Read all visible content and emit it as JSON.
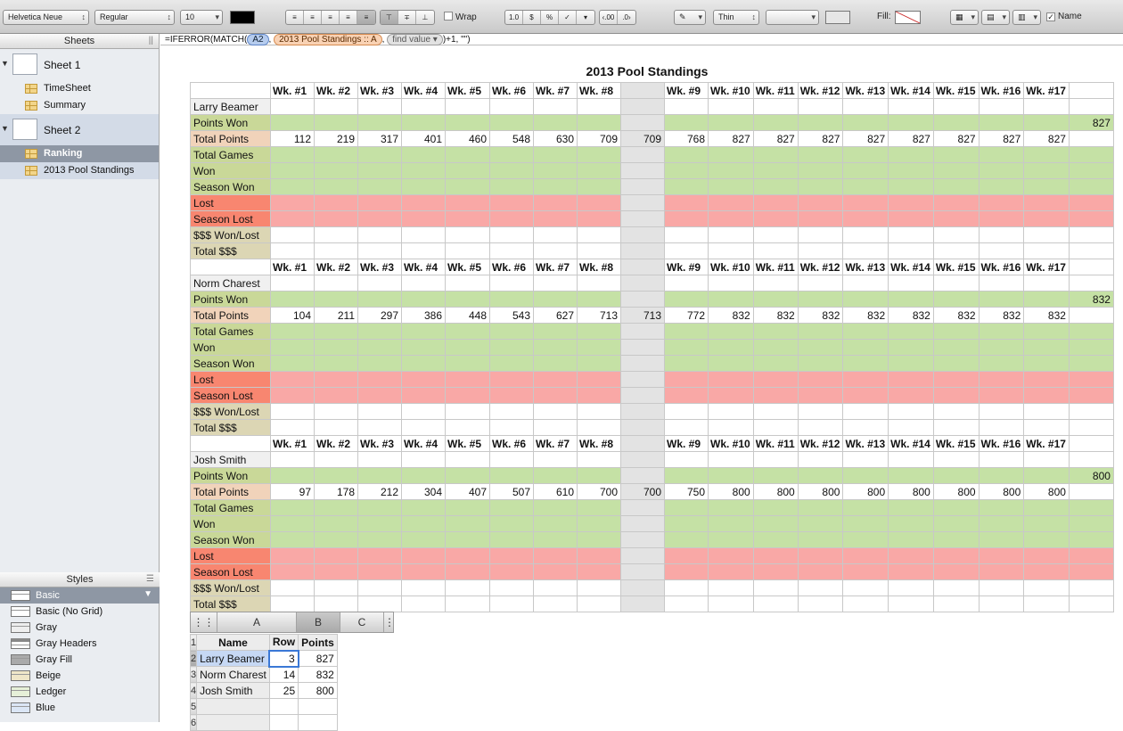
{
  "toolbar": {
    "font_family": "Helvetica Neue",
    "font_style": "Regular",
    "font_size": "10",
    "text_color": "#000000",
    "wrap_label": "Wrap",
    "format_buttons": [
      "1.0",
      "$",
      "%",
      "✓",
      "▾",
      "‹.00",
      ".0›"
    ],
    "stroke_label": "Thin",
    "fill_label": "Fill:",
    "name_label": "Name"
  },
  "sidebar": {
    "sheets_title": "Sheets",
    "sheets": [
      {
        "name": "Sheet 1",
        "tables": [
          "TimeSheet",
          "Summary"
        ]
      },
      {
        "name": "Sheet 2",
        "tables": [
          "Ranking",
          "2013 Pool Standings"
        ]
      }
    ],
    "styles_title": "Styles",
    "styles": [
      "Basic",
      "Basic (No Grid)",
      "Gray",
      "Gray Headers",
      "Gray Fill",
      "Beige",
      "Ledger",
      "Blue"
    ]
  },
  "formula": {
    "prefix": "=IFERROR(MATCH(",
    "ref1": "A2",
    "ref2": "2013 Pool Standings :: A",
    "placeholder": "find value",
    "suffix": ")+1, \"\")"
  },
  "standings": {
    "title": "2013 Pool Standings",
    "weeks": [
      "Wk. #1",
      "Wk. #2",
      "Wk. #3",
      "Wk. #4",
      "Wk. #5",
      "Wk. #6",
      "Wk. #7",
      "Wk. #8",
      "",
      "Wk. #9",
      "Wk. #10",
      "Wk. #11",
      "Wk. #12",
      "Wk. #13",
      "Wk. #14",
      "Wk. #15",
      "Wk. #16",
      "Wk. #17",
      ""
    ],
    "row_labels": {
      "points_won": "Points Won",
      "total_points": "Total Points",
      "total_games": "Total Games",
      "won": "Won",
      "season_won": "Season Won",
      "lost": "Lost",
      "season_lost": "Season Lost",
      "money": "$$$ Won/Lost",
      "total_money": "Total $$$"
    },
    "players": [
      {
        "name": "Larry Beamer",
        "points_won_total": "827",
        "total_points": [
          "112",
          "219",
          "317",
          "401",
          "460",
          "548",
          "630",
          "709",
          "709",
          "768",
          "827",
          "827",
          "827",
          "827",
          "827",
          "827",
          "827",
          "827",
          ""
        ]
      },
      {
        "name": "Norm Charest",
        "points_won_total": "832",
        "total_points": [
          "104",
          "211",
          "297",
          "386",
          "448",
          "543",
          "627",
          "713",
          "713",
          "772",
          "832",
          "832",
          "832",
          "832",
          "832",
          "832",
          "832",
          "832",
          ""
        ]
      },
      {
        "name": "Josh Smith",
        "points_won_total": "800",
        "total_points": [
          "97",
          "178",
          "212",
          "304",
          "407",
          "507",
          "610",
          "700",
          "700",
          "750",
          "800",
          "800",
          "800",
          "800",
          "800",
          "800",
          "800",
          "800",
          ""
        ]
      }
    ]
  },
  "ranking": {
    "col_letters": [
      "A",
      "B",
      "C"
    ],
    "headers": [
      "Name",
      "Row",
      "Points"
    ],
    "rows": [
      {
        "name": "Larry Beamer",
        "row": "3",
        "points": "827"
      },
      {
        "name": "Norm Charest",
        "row": "14",
        "points": "832"
      },
      {
        "name": "Josh Smith",
        "row": "25",
        "points": "800"
      }
    ],
    "row_numbers": [
      "1",
      "2",
      "3",
      "4",
      "5",
      "6"
    ]
  }
}
